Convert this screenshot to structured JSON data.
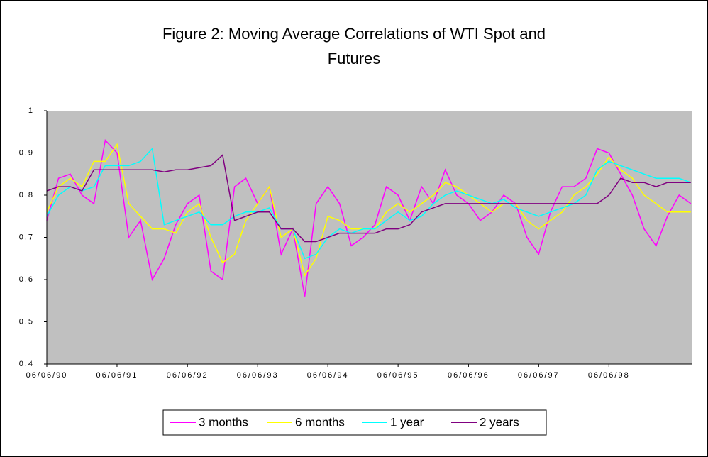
{
  "chart_data": {
    "type": "line",
    "title": "Figure 2: Moving Average Correlations of WTI Spot and Futures",
    "x": [
      "06/06/90",
      "08/06/90",
      "10/06/90",
      "12/06/90",
      "02/06/91",
      "04/06/91",
      "06/06/91",
      "08/06/91",
      "10/06/91",
      "12/06/91",
      "02/06/92",
      "04/06/92",
      "06/06/92",
      "08/06/92",
      "10/06/92",
      "12/06/92",
      "02/06/93",
      "04/06/93",
      "06/06/93",
      "08/06/93",
      "10/06/93",
      "12/06/93",
      "02/06/94",
      "04/06/94",
      "06/06/94",
      "08/06/94",
      "10/06/94",
      "12/06/94",
      "02/06/95",
      "04/06/95",
      "06/06/95",
      "08/06/95",
      "10/06/95",
      "12/06/95",
      "02/06/96",
      "04/06/96",
      "06/06/96",
      "08/06/96",
      "10/06/96",
      "12/06/96",
      "02/06/97",
      "04/06/97",
      "06/06/97",
      "08/06/97",
      "10/06/97",
      "12/06/97",
      "02/06/98",
      "04/06/98",
      "06/06/98",
      "08/06/98",
      "10/06/98",
      "12/06/98",
      "02/06/99",
      "04/06/99",
      "06/06/99",
      "08/06/99"
    ],
    "series": [
      {
        "name": "3 months",
        "color": "#ff00ff",
        "values": [
          0.74,
          0.84,
          0.85,
          0.8,
          0.78,
          0.93,
          0.9,
          0.7,
          0.74,
          0.6,
          0.65,
          0.73,
          0.78,
          0.8,
          0.62,
          0.6,
          0.82,
          0.84,
          0.78,
          0.82,
          0.66,
          0.72,
          0.56,
          0.78,
          0.82,
          0.78,
          0.68,
          0.7,
          0.73,
          0.82,
          0.8,
          0.74,
          0.82,
          0.78,
          0.86,
          0.8,
          0.78,
          0.74,
          0.76,
          0.8,
          0.78,
          0.7,
          0.66,
          0.76,
          0.82,
          0.82,
          0.84,
          0.91,
          0.9,
          0.85,
          0.8,
          0.72,
          0.68,
          0.75,
          0.8,
          0.78
        ]
      },
      {
        "name": "6 months",
        "color": "#ffff00",
        "values": [
          0.76,
          0.82,
          0.84,
          0.82,
          0.88,
          0.88,
          0.92,
          0.78,
          0.75,
          0.72,
          0.72,
          0.71,
          0.76,
          0.78,
          0.7,
          0.64,
          0.66,
          0.74,
          0.78,
          0.82,
          0.7,
          0.72,
          0.61,
          0.65,
          0.75,
          0.74,
          0.72,
          0.72,
          0.72,
          0.76,
          0.78,
          0.76,
          0.78,
          0.8,
          0.83,
          0.82,
          0.8,
          0.78,
          0.76,
          0.78,
          0.78,
          0.74,
          0.72,
          0.74,
          0.76,
          0.8,
          0.82,
          0.85,
          0.89,
          0.86,
          0.84,
          0.8,
          0.78,
          0.76,
          0.76,
          0.76
        ]
      },
      {
        "name": "1 year",
        "color": "#00ffff",
        "values": [
          0.75,
          0.8,
          0.82,
          0.81,
          0.82,
          0.87,
          0.87,
          0.87,
          0.88,
          0.91,
          0.73,
          0.74,
          0.75,
          0.76,
          0.73,
          0.73,
          0.75,
          0.76,
          0.76,
          0.77,
          0.72,
          0.72,
          0.65,
          0.66,
          0.7,
          0.72,
          0.71,
          0.72,
          0.72,
          0.74,
          0.76,
          0.74,
          0.75,
          0.78,
          0.8,
          0.81,
          0.8,
          0.79,
          0.78,
          0.79,
          0.77,
          0.76,
          0.75,
          0.76,
          0.77,
          0.78,
          0.8,
          0.86,
          0.88,
          0.87,
          0.86,
          0.85,
          0.84,
          0.84,
          0.84,
          0.83
        ]
      },
      {
        "name": "2 years",
        "color": "#800080",
        "values": [
          0.81,
          0.82,
          0.82,
          0.81,
          0.86,
          0.86,
          0.86,
          0.86,
          0.86,
          0.86,
          0.855,
          0.86,
          0.86,
          0.865,
          0.87,
          0.895,
          0.74,
          0.75,
          0.76,
          0.76,
          0.72,
          0.72,
          0.69,
          0.69,
          0.7,
          0.71,
          0.71,
          0.71,
          0.71,
          0.72,
          0.72,
          0.73,
          0.76,
          0.77,
          0.78,
          0.78,
          0.78,
          0.78,
          0.78,
          0.78,
          0.78,
          0.78,
          0.78,
          0.78,
          0.78,
          0.78,
          0.78,
          0.78,
          0.8,
          0.84,
          0.83,
          0.83,
          0.82,
          0.83,
          0.83,
          0.83
        ]
      }
    ],
    "xlim": [
      "06/06/90",
      "08/14/99"
    ],
    "xticks": [
      "06/06/90",
      "06/06/91",
      "06/06/92",
      "06/06/93",
      "06/06/94",
      "06/06/95",
      "06/06/96",
      "06/06/97",
      "06/06/98"
    ],
    "ylim": [
      0.4,
      1
    ],
    "yticks": [
      0.4,
      0.5,
      0.6,
      0.7,
      0.8,
      0.9,
      1
    ],
    "grid": false,
    "legend": "bottom"
  }
}
